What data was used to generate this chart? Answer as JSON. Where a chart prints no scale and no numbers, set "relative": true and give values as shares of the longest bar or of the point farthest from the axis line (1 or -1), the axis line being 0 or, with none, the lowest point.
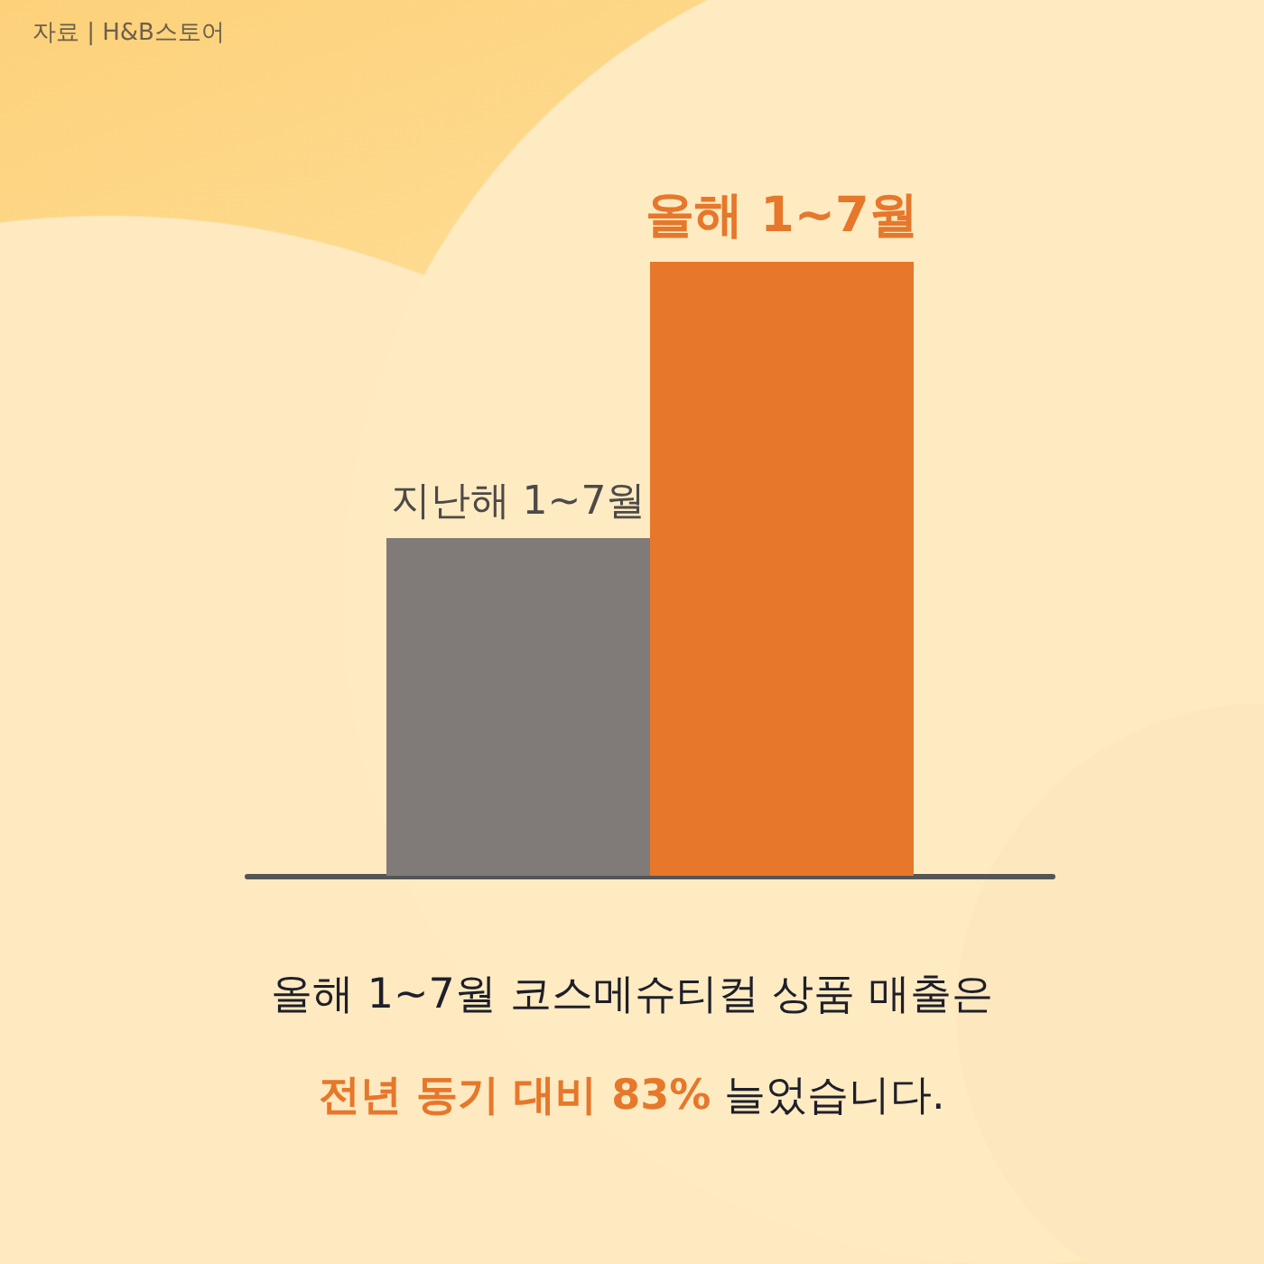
{
  "chart_data": {
    "type": "bar",
    "categories": [
      "지난해 1~7월",
      "올해 1~7월"
    ],
    "values": [
      0.55,
      1
    ],
    "colors": [
      "#807b78",
      "#e6772b"
    ],
    "relative": true,
    "annotations": [
      "자료 | H&B스토어",
      "올해 1~7월 코스메슈티컬 상품 매출은",
      "전년 동기 대비 83%",
      "늘었습니다."
    ]
  }
}
